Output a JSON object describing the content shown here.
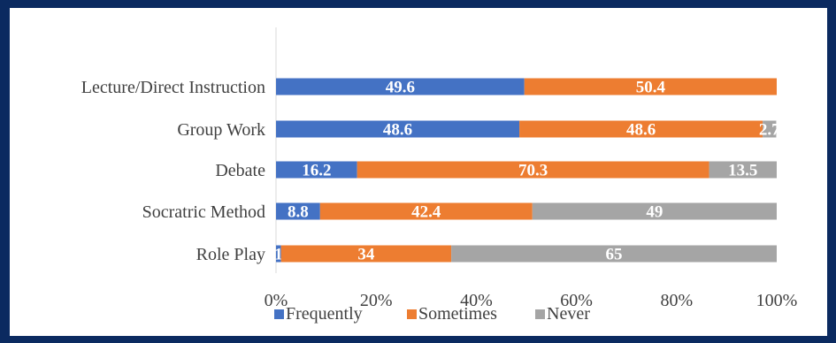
{
  "chart_data": {
    "type": "bar",
    "orientation": "horizontal",
    "stacked": "percent",
    "title": "",
    "xlabel": "",
    "ylabel": "",
    "categories": [
      "Lecture/Direct Instruction",
      "Group Work",
      "Debate",
      "Socratric Method",
      "Role Play"
    ],
    "series": [
      {
        "name": "Frequently",
        "color": "#4472c4",
        "values": [
          49.6,
          48.6,
          16.2,
          8.8,
          1
        ],
        "labels": [
          "49.6",
          "48.6",
          "16.2",
          "8.8",
          "1"
        ]
      },
      {
        "name": "Sometimes",
        "color": "#ed7d31",
        "values": [
          50.4,
          48.6,
          70.3,
          42.4,
          34
        ],
        "labels": [
          "50.4",
          "48.6",
          "70.3",
          "42.4",
          "34"
        ]
      },
      {
        "name": "Never",
        "color": "#a5a5a5",
        "values": [
          0,
          2.7,
          13.5,
          49,
          65
        ],
        "labels": [
          "",
          "2.7",
          "13.5",
          "49",
          "65"
        ]
      }
    ],
    "xlim": [
      0,
      100
    ],
    "xticks": [
      "0%",
      "20%",
      "40%",
      "60%",
      "80%",
      "100%"
    ],
    "grid": false,
    "legend": "bottom"
  }
}
